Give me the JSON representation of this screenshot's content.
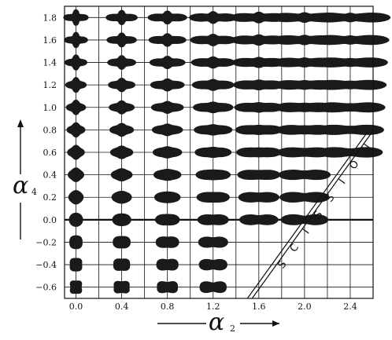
{
  "chart_data": {
    "type": "scatter",
    "x_values": [
      0.0,
      0.2,
      0.4,
      0.6,
      0.8,
      1.0,
      1.2,
      1.4,
      1.6,
      1.8,
      2.0,
      2.2,
      2.4
    ],
    "y_values": [
      -0.6,
      -0.4,
      -0.2,
      0.0,
      0.2,
      0.4,
      0.6,
      0.8,
      1.0,
      1.2,
      1.4,
      1.6,
      1.8
    ],
    "x_ticks": [
      "0.0",
      "0.4",
      "0.8",
      "1.2",
      "1.6",
      "2.0",
      "2.4"
    ],
    "y_ticks": [
      "1.8",
      "1.6",
      "1.4",
      "1.2",
      "1.0",
      "0.8",
      "0.6",
      "0.4",
      "0.2",
      "0.0",
      "-0.2",
      "-0.4",
      "-0.6"
    ],
    "xlim": [
      -0.1,
      2.6
    ],
    "ylim": [
      -0.7,
      1.9
    ],
    "grid": true,
    "xlabel": {
      "main": "α",
      "sub": "2"
    },
    "ylabel": {
      "main": "α",
      "sub": "4"
    },
    "annotation": {
      "letters": [
        "S",
        "C",
        "I",
        "S",
        "S",
        "I",
        "O",
        "N"
      ]
    },
    "scission_line": [
      [
        1.5,
        -0.7
      ],
      [
        2.55,
        0.78
      ]
    ],
    "shape_color": "#1a1a1a",
    "line_color": "#111111"
  }
}
